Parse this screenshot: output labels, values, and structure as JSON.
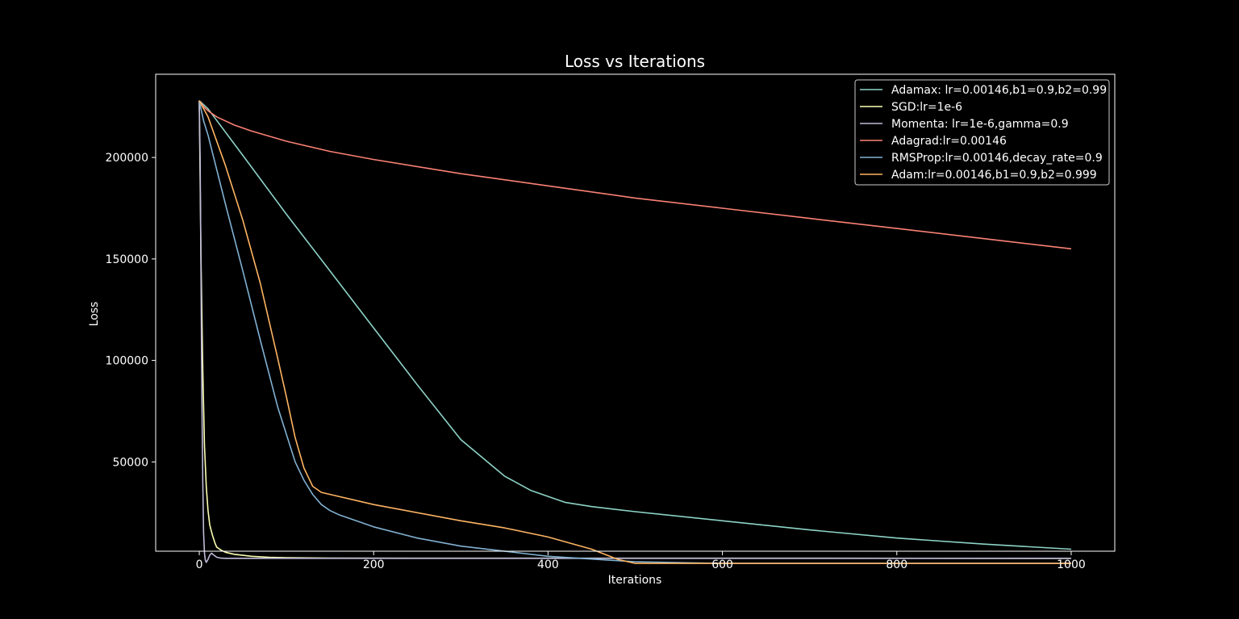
{
  "chart_data": {
    "type": "line",
    "title": "Loss vs Iterations",
    "xlabel": "Iterations",
    "ylabel": "Loss",
    "xlim": [
      -50,
      1050
    ],
    "ylim": [
      6000,
      241000
    ],
    "xticks": [
      0,
      200,
      400,
      600,
      800,
      1000
    ],
    "yticks": [
      50000,
      100000,
      150000,
      200000
    ],
    "grid": false,
    "legend_position": "top-right",
    "background": "#000000",
    "series": [
      {
        "name": "Adamax: lr=0.00146,b1=0.9,b2=0.99",
        "color": "#8dd3c7",
        "x": [
          0,
          10,
          50,
          100,
          150,
          200,
          250,
          300,
          350,
          380,
          400,
          420,
          450,
          500,
          600,
          700,
          800,
          900,
          1000
        ],
        "y": [
          228000,
          224000,
          201000,
          172000,
          144000,
          116000,
          88000,
          61000,
          43000,
          36000,
          33000,
          30000,
          28000,
          25500,
          21000,
          16500,
          12500,
          9500,
          7000
        ]
      },
      {
        "name": "SGD:lr=1e-6",
        "color": "#feffb3",
        "x": [
          0,
          2,
          4,
          6,
          8,
          10,
          12,
          15,
          18,
          20,
          25,
          30,
          40,
          60,
          80,
          100,
          150,
          1000
        ],
        "y": [
          228000,
          150000,
          95000,
          58000,
          38000,
          26000,
          19000,
          14000,
          10000,
          8000,
          6500,
          5500,
          4500,
          3500,
          3000,
          2800,
          2600,
          2500
        ]
      },
      {
        "name": "Momenta: lr=1e-6,gamma=0.9",
        "color": "#bfbbd9",
        "x": [
          0,
          1,
          2,
          3,
          4,
          5,
          6,
          7,
          8,
          10,
          12,
          14,
          17,
          20,
          25,
          30,
          40,
          1000
        ],
        "y": [
          228000,
          200000,
          140000,
          80000,
          40000,
          15000,
          5000,
          1500,
          500,
          2000,
          4000,
          5000,
          4000,
          3000,
          2600,
          2500,
          2500,
          2500
        ]
      },
      {
        "name": "Adagrad:lr=0.00146",
        "color": "#fa8174",
        "x": [
          0,
          5,
          10,
          20,
          40,
          60,
          100,
          150,
          200,
          300,
          400,
          500,
          600,
          700,
          800,
          900,
          1000
        ],
        "y": [
          228000,
          225000,
          223000,
          220000,
          216000,
          213000,
          208000,
          203000,
          199000,
          192000,
          186000,
          180000,
          175000,
          170000,
          165000,
          160000,
          155000
        ]
      },
      {
        "name": "RMSProp:lr=0.00146,decay_rate=0.9",
        "color": "#81b1d2",
        "x": [
          0,
          5,
          10,
          30,
          50,
          70,
          90,
          110,
          120,
          130,
          140,
          150,
          160,
          200,
          250,
          300,
          400,
          500,
          600,
          700,
          800,
          900,
          1000
        ],
        "y": [
          228000,
          218000,
          211000,
          177000,
          144000,
          110000,
          77000,
          50000,
          41000,
          34000,
          29000,
          26000,
          24000,
          18000,
          12500,
          8500,
          3500,
          800,
          0,
          0,
          0,
          0,
          0
        ]
      },
      {
        "name": "Adam:lr=0.00146,b1=0.9,b2=0.999",
        "color": "#fdb462",
        "x": [
          0,
          10,
          30,
          50,
          70,
          90,
          100,
          110,
          120,
          130,
          140,
          150,
          200,
          300,
          350,
          400,
          450,
          480,
          500,
          530,
          560,
          600,
          700,
          800,
          900,
          1000
        ],
        "y": [
          228000,
          220000,
          196000,
          169000,
          138000,
          101000,
          82000,
          62000,
          47000,
          38000,
          35000,
          34000,
          29000,
          21000,
          17500,
          13000,
          7000,
          2000,
          0,
          0,
          0,
          0,
          0,
          0,
          0,
          0
        ]
      }
    ]
  }
}
